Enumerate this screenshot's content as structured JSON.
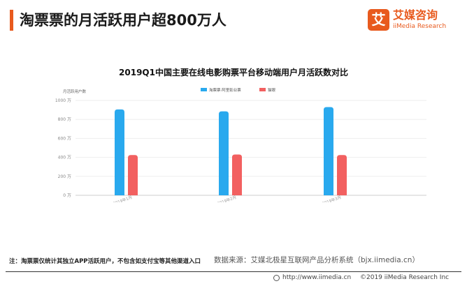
{
  "header": {
    "title": "淘票票的月活跃用户超800万人",
    "accent_color": "#e85a1e"
  },
  "logo": {
    "mark": "艾",
    "name": "艾媒咨询",
    "subtitle": "iiMedia Research"
  },
  "chart_data": {
    "type": "bar",
    "title": "2019Q1中国主要在线电影购票平台移动端用户月活跃数对比",
    "ylabel": "月活跃用户数",
    "xlabel": "",
    "ylim": [
      0,
      1000
    ],
    "yticks": [
      0,
      200,
      400,
      600,
      800,
      1000
    ],
    "ytick_suffix": "万",
    "categories": [
      "2019年1月",
      "2019年2月",
      "2019年3月"
    ],
    "series": [
      {
        "name": "淘票票·阿里影业票",
        "color": "#29a9ee",
        "values": [
          905,
          885,
          930
        ]
      },
      {
        "name": "猫眼",
        "color": "#f26060",
        "values": [
          425,
          430,
          425
        ]
      }
    ],
    "grid": true,
    "legend_position": "top"
  },
  "note": "注：淘票票仅统计其独立APP活跃用户，不包含如支付宝等其他渠道入口",
  "source": "数据来源：艾媒北极星互联网产品分析系统（bjx.iimedia.cn）",
  "footer": {
    "url": "http://www.iimedia.cn",
    "copyright": "©2019  iiMedia Research  Inc"
  }
}
